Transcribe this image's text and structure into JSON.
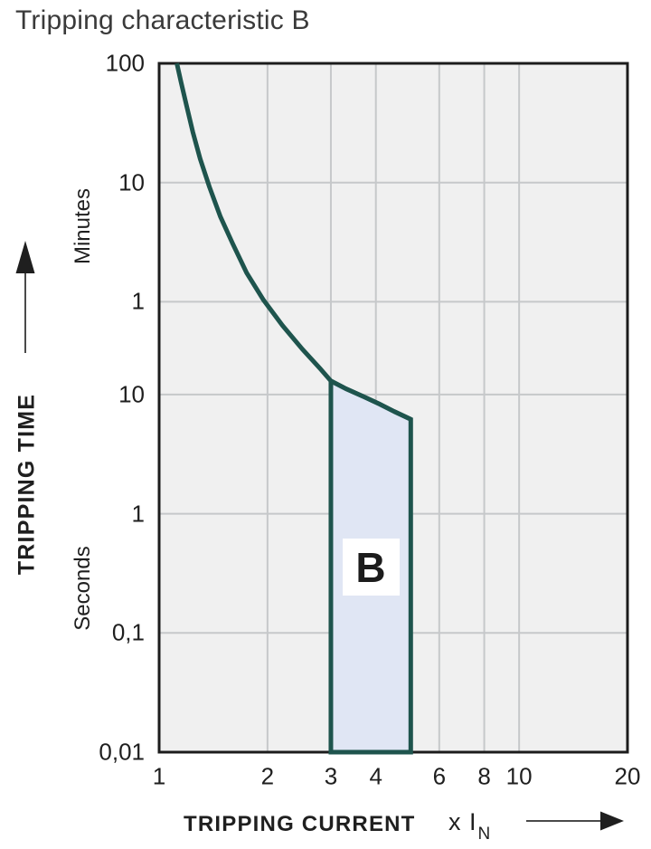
{
  "page": {
    "title": "Tripping characteristic B"
  },
  "chart_data": {
    "type": "line",
    "title": "Tripping characteristic B",
    "x_axis": {
      "label": "TRIPPING CURRENT",
      "unit": {
        "prefix": "x",
        "symbol": "I",
        "subscript": "N"
      },
      "scale": "log",
      "range": [
        1,
        20
      ],
      "ticks": [
        1,
        2,
        3,
        4,
        6,
        8,
        10,
        20
      ]
    },
    "y_axis": {
      "label": "TRIPPING TIME",
      "scale": "log",
      "range_seconds": [
        0.01,
        6000
      ],
      "ticks": [
        {
          "t": 6000,
          "label": "100"
        },
        {
          "t": 600,
          "label": "10"
        },
        {
          "t": 60,
          "label": "1"
        },
        {
          "t": 10,
          "label": "10"
        },
        {
          "t": 1,
          "label": "1"
        },
        {
          "t": 0.1,
          "label": "0,1"
        },
        {
          "t": 0.01,
          "label": "0,01"
        }
      ],
      "unit_sections": [
        {
          "label": "Minutes",
          "covers_ticks": [
            "100",
            "10",
            "1"
          ]
        },
        {
          "label": "Seconds",
          "covers_ticks": [
            "10",
            "1",
            "0,1",
            "0,01"
          ]
        }
      ]
    },
    "series": [
      {
        "name": "tripping-curve-upper-limit",
        "points": [
          [
            1.12,
            6000
          ],
          [
            1.15,
            4200
          ],
          [
            1.19,
            2700
          ],
          [
            1.24,
            1600
          ],
          [
            1.3,
            950
          ],
          [
            1.38,
            550
          ],
          [
            1.48,
            310
          ],
          [
            1.6,
            185
          ],
          [
            1.75,
            105
          ],
          [
            1.95,
            62
          ],
          [
            2.2,
            38
          ],
          [
            2.5,
            24
          ],
          [
            2.8,
            16.5
          ],
          [
            3.0,
            13
          ]
        ]
      }
    ],
    "band": {
      "label": "B",
      "x_range": [
        3,
        5
      ],
      "bottom_seconds": 0.01,
      "top_boundary": [
        [
          3.0,
          13
        ],
        [
          3.3,
          11.2
        ],
        [
          3.7,
          9.6
        ],
        [
          4.1,
          8.3
        ],
        [
          4.5,
          7.2
        ],
        [
          5.0,
          6.2
        ]
      ]
    },
    "grid": true,
    "legend": "none",
    "colors": {
      "curve": "#1e544d",
      "band_fill": "#e0e6f4",
      "plot_bg": "#f0f0f0",
      "grid": "#c6c8ca",
      "border": "#1c1c1c",
      "text": "#1f1f1f",
      "arrow": "#1f1f1f"
    }
  }
}
